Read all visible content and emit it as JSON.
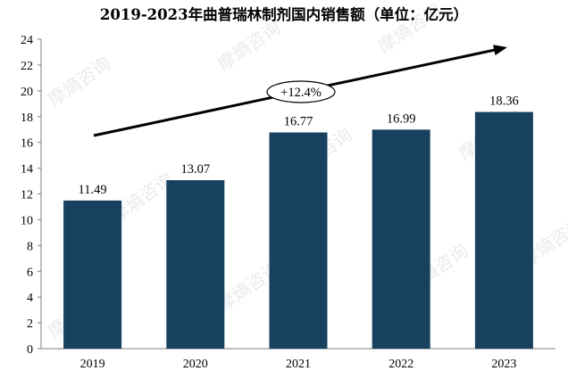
{
  "chart_data": {
    "type": "bar",
    "title": "2019-2023年曲普瑞林制剂国内销售额（单位：亿元）",
    "categories": [
      "2019",
      "2020",
      "2021",
      "2022",
      "2023"
    ],
    "values": [
      11.49,
      13.07,
      16.77,
      16.99,
      18.36
    ],
    "value_labels": [
      "11.49",
      "13.07",
      "16.77",
      "16.99",
      "18.36"
    ],
    "ylim": [
      0,
      24
    ],
    "yticks": [
      "0",
      "2",
      "4",
      "6",
      "8",
      "10",
      "12",
      "14",
      "16",
      "18",
      "20",
      "22",
      "24"
    ],
    "grid": false,
    "bar_color": "#17415f",
    "annotation": "+12.4%",
    "watermark": "摩熵咨询"
  }
}
